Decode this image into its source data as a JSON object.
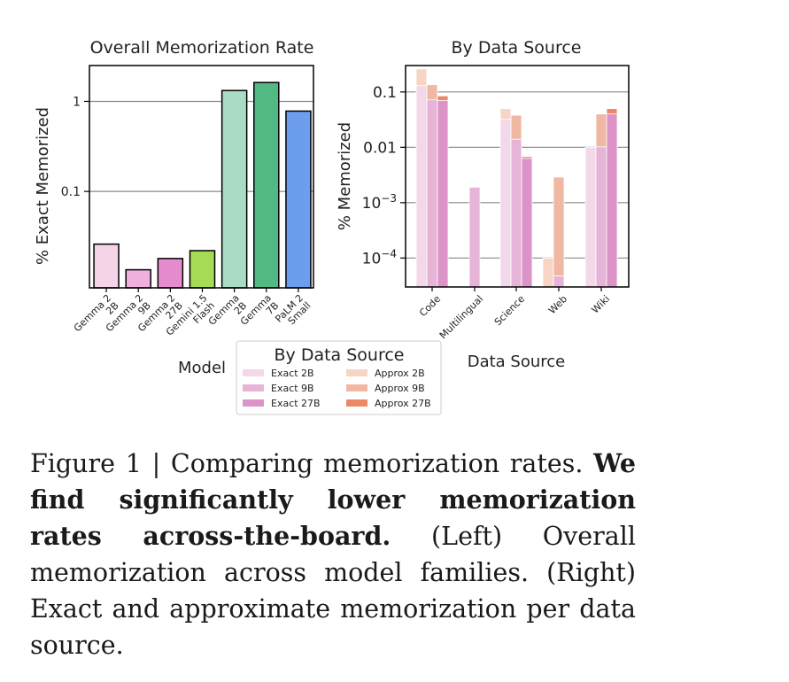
{
  "chart_data": [
    {
      "type": "bar",
      "title": "Overall Memorization Rate",
      "xlabel": "Model",
      "ylabel": "% Exact Memorized",
      "yscale": "log",
      "ylim": [
        0.0085,
        2.5
      ],
      "yticks": [
        {
          "value": 0.1,
          "label": "0.1"
        },
        {
          "value": 1,
          "label": "1"
        }
      ],
      "categories": [
        "Gemma 2\n2B",
        "Gemma 2\n9B",
        "Gemma 2\n27B",
        "Gemini 1.5\nFlash",
        "Gemma\n2B",
        "Gemma\n7B",
        "PaLM 2\nSmall"
      ],
      "values": [
        0.026,
        0.0135,
        0.018,
        0.022,
        1.32,
        1.62,
        0.78
      ],
      "colors": [
        "#f6d4e8",
        "#eeb0dc",
        "#e48cce",
        "#a6dc55",
        "#a9dcc5",
        "#52b985",
        "#6c9eed"
      ]
    },
    {
      "type": "bar",
      "title": "By Data Source",
      "xlabel": "Data Source",
      "ylabel": "% Memorized",
      "yscale": "log",
      "ylim": [
        3e-05,
        0.3
      ],
      "yticks": [
        {
          "value": 0.0001,
          "base": "10",
          "exp": "−4"
        },
        {
          "value": 0.001,
          "base": "10",
          "exp": "−3"
        },
        {
          "value": 0.01,
          "label": "0.01"
        },
        {
          "value": 0.1,
          "label": "0.1"
        }
      ],
      "categories": [
        "Code",
        "Multilingual",
        "Science",
        "Web",
        "Wiki"
      ],
      "series": [
        {
          "name": "Exact 2B",
          "color": "#f2d8e8",
          "values": [
            0.13,
            null,
            0.032,
            null,
            0.01
          ]
        },
        {
          "name": "Exact 9B",
          "color": "#e6b4d6",
          "values": [
            0.072,
            0.0019,
            0.014,
            4.75e-05,
            0.0102
          ]
        },
        {
          "name": "Exact 27B",
          "color": "#dc94c8",
          "values": [
            0.07,
            null,
            0.0063,
            null,
            0.04
          ]
        },
        {
          "name": "Approx 2B",
          "color": "#f8d4c4",
          "values": [
            0.26,
            null,
            0.05,
            0.0001,
            null
          ]
        },
        {
          "name": "Approx 9B",
          "color": "#f0b8a2",
          "values": [
            0.135,
            null,
            0.038,
            0.0029,
            0.04
          ]
        },
        {
          "name": "Approx 27B",
          "color": "#ec8866",
          "values": [
            0.085,
            null,
            0.0068,
            null,
            0.05
          ]
        }
      ]
    }
  ],
  "legend": {
    "title": "By Data Source",
    "items": [
      {
        "label": "Exact 2B",
        "color": "#f2d8e8"
      },
      {
        "label": "Approx 2B",
        "color": "#f8d4c4"
      },
      {
        "label": "Exact 9B",
        "color": "#e6b4d6"
      },
      {
        "label": "Approx 9B",
        "color": "#f0b8a2"
      },
      {
        "label": "Exact 27B",
        "color": "#dc94c8"
      },
      {
        "label": "Approx 27B",
        "color": "#ec8866"
      }
    ]
  },
  "caption": {
    "label": "Figure 1 | Comparing memorization rates.",
    "bold": "We find significantly lower memorization rates across-the-board.",
    "rest": "(Left) Overall memorization across model families. (Right) Exact and approximate memorization per data source."
  }
}
